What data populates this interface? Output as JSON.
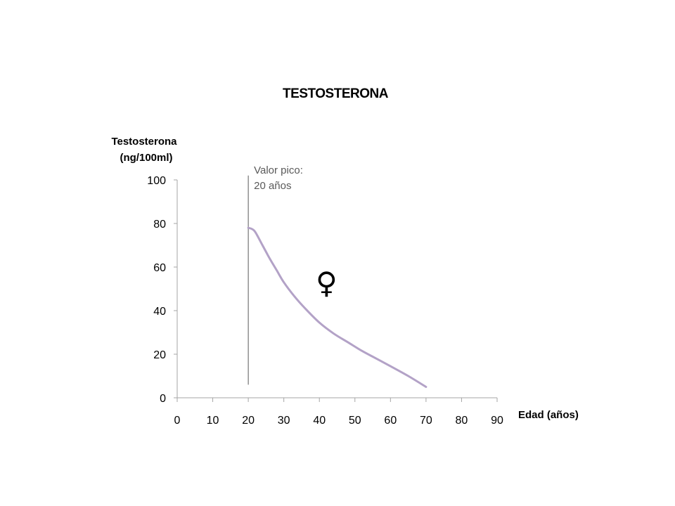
{
  "chart_data": {
    "type": "line",
    "title": "TESTOSTERONA",
    "ylabel_lines": [
      "Testosterona",
      "(ng/100ml)"
    ],
    "xlabel": "Edad (años)",
    "xlim": [
      0,
      90
    ],
    "ylim": [
      0,
      100
    ],
    "xticks": [
      0,
      10,
      20,
      30,
      40,
      50,
      60,
      70,
      80,
      90
    ],
    "yticks": [
      0,
      20,
      40,
      60,
      80,
      100
    ],
    "grid": false,
    "series": [
      {
        "color": "#b3a2c7",
        "x": [
          20,
          21,
          22,
          24,
          26,
          28,
          30,
          33,
          36,
          40,
          44,
          48,
          52,
          56,
          60,
          65,
          70
        ],
        "y": [
          78,
          77.5,
          76,
          70,
          64,
          58.5,
          53,
          46.5,
          41,
          34.5,
          29.5,
          25.5,
          21.5,
          18,
          14.5,
          10,
          5
        ]
      }
    ],
    "reference_line": {
      "x": 20,
      "y_from": 6,
      "y_to": 102,
      "color": "#595959"
    },
    "annotations": [
      {
        "lines": [
          "Valor pico:",
          "20 años"
        ],
        "x": 20,
        "y": 100
      },
      {
        "text": "♀",
        "name": "female-symbol",
        "x": 42,
        "y": 48
      }
    ]
  }
}
